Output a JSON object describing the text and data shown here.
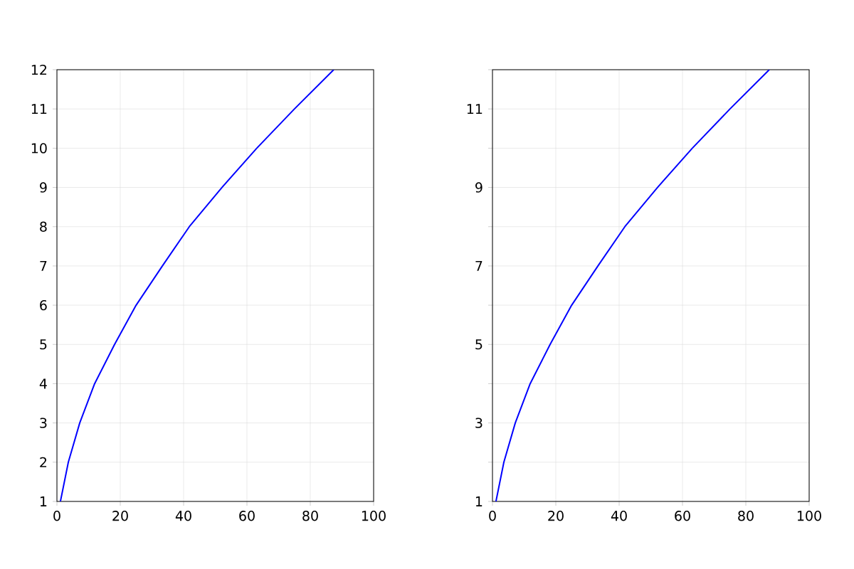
{
  "chart_data": [
    {
      "type": "line",
      "x": [
        1.1,
        3.6,
        7.2,
        11.9,
        18.2,
        25,
        33.3,
        41.8,
        52.1,
        63.1,
        75,
        87.4
      ],
      "values": [
        1,
        2,
        3,
        4,
        5,
        6,
        7,
        8,
        9,
        10,
        11,
        12
      ],
      "color": "#0000ff",
      "xlim": [
        0,
        100
      ],
      "xticks": [
        0,
        20,
        40,
        60,
        80,
        100
      ],
      "ylim": [
        1,
        12
      ],
      "yticks": [
        1,
        2,
        3,
        4,
        5,
        6,
        7,
        8,
        9,
        10,
        11,
        12
      ],
      "grid": true
    },
    {
      "type": "line",
      "x": [
        1.1,
        3.6,
        7.2,
        11.9,
        18.2,
        25,
        33.3,
        41.8,
        52.1,
        63.1,
        75,
        87.4
      ],
      "values": [
        1,
        2,
        3,
        4,
        5,
        6,
        7,
        8,
        9,
        10,
        11,
        12
      ],
      "color": "#0000ff",
      "xlim": [
        0,
        100
      ],
      "xticks": [
        0,
        20,
        40,
        60,
        80,
        100
      ],
      "ylim": [
        1,
        12
      ],
      "yticks": [
        1,
        {
          "value": 2,
          "label": null
        },
        3,
        {
          "value": 4,
          "label": null
        },
        5,
        {
          "value": 6,
          "label": null
        },
        7,
        {
          "value": 8,
          "label": null
        },
        9,
        {
          "value": 10,
          "label": null
        },
        11,
        {
          "value": 12,
          "label": null
        }
      ],
      "grid": true
    }
  ]
}
